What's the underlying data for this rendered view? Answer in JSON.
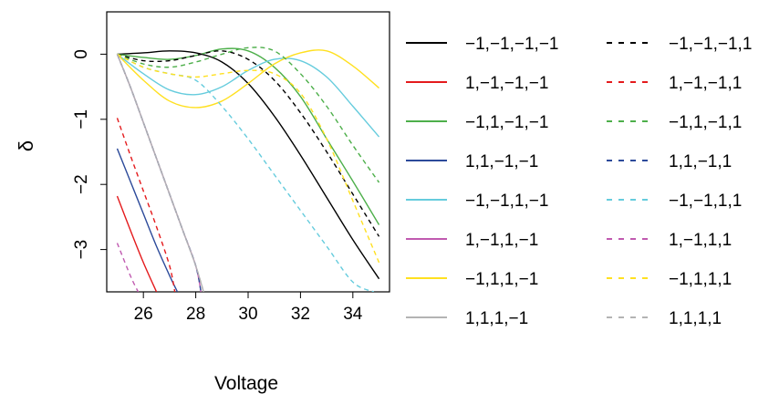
{
  "chart_data": {
    "type": "line",
    "title": "",
    "xlabel": "Voltage",
    "ylabel": "δ",
    "xlim": [
      24.6,
      35.4
    ],
    "ylim": [
      -3.65,
      0.65
    ],
    "x_ticks": [
      26,
      28,
      30,
      32,
      34
    ],
    "x_tick_labels": [
      "26",
      "28",
      "30",
      "32",
      "34"
    ],
    "y_ticks": [
      0,
      -1,
      -2,
      -3
    ],
    "y_tick_labels": [
      "0",
      "−1",
      "−2",
      "−3"
    ],
    "grid": false,
    "legend_position": "right",
    "series": [
      {
        "name": "−1,−1,−1,−1",
        "color": "#000000",
        "dash": "solid",
        "x": [
          25,
          26,
          27,
          28,
          29,
          30,
          31,
          32,
          33,
          34,
          35
        ],
        "y": [
          0,
          0.02,
          0.05,
          0.02,
          -0.12,
          -0.45,
          -0.95,
          -1.55,
          -2.2,
          -2.85,
          -3.45
        ]
      },
      {
        "name": "1,−1,−1,−1",
        "color": "#e41a1c",
        "dash": "solid",
        "x": [
          25,
          25.5,
          26,
          26.5
        ],
        "y": [
          -2.18,
          -2.7,
          -3.2,
          -3.65
        ]
      },
      {
        "name": "−1,1,−1,−1",
        "color": "#4daf4a",
        "dash": "solid",
        "x": [
          25,
          26,
          27,
          28,
          29,
          30,
          31,
          32,
          33,
          34,
          35
        ],
        "y": [
          0,
          -0.05,
          -0.08,
          -0.02,
          0.08,
          0.05,
          -0.2,
          -0.65,
          -1.3,
          -1.95,
          -2.62
        ]
      },
      {
        "name": "1,1,−1,−1",
        "color": "#2c4a9a",
        "dash": "solid",
        "x": [
          25,
          25.5,
          26,
          26.5,
          27,
          27.3
        ],
        "y": [
          -1.45,
          -1.95,
          -2.45,
          -2.95,
          -3.4,
          -3.65
        ]
      },
      {
        "name": "−1,−1,1,−1",
        "color": "#66ccdd",
        "dash": "solid",
        "x": [
          25,
          26,
          27,
          28,
          29,
          30,
          31,
          32,
          33,
          34,
          35
        ],
        "y": [
          0,
          -0.3,
          -0.55,
          -0.62,
          -0.5,
          -0.25,
          -0.08,
          -0.1,
          -0.35,
          -0.8,
          -1.27
        ]
      },
      {
        "name": "1,−1,1,−1",
        "color": "#c05ab0",
        "dash": "solid",
        "x": [
          25,
          25.5,
          26,
          26.5,
          27,
          27.5,
          28,
          28.2
        ],
        "y": [
          0,
          -0.5,
          -1.05,
          -1.6,
          -2.15,
          -2.7,
          -3.25,
          -3.65
        ]
      },
      {
        "name": "−1,1,1,−1",
        "color": "#ffe020",
        "dash": "solid",
        "x": [
          25,
          26,
          27,
          28,
          29,
          30,
          31,
          32,
          33,
          34,
          35
        ],
        "y": [
          0,
          -0.4,
          -0.72,
          -0.82,
          -0.72,
          -0.45,
          -0.15,
          0.02,
          0.05,
          -0.18,
          -0.52
        ]
      },
      {
        "name": "1,1,1,−1",
        "color": "#b3b3b3",
        "dash": "solid",
        "x": [
          25,
          25.5,
          26,
          26.5,
          27,
          27.5,
          28,
          28.3
        ],
        "y": [
          0,
          -0.5,
          -1.05,
          -1.6,
          -2.15,
          -2.7,
          -3.25,
          -3.65
        ]
      },
      {
        "name": "−1,−1,−1,1",
        "color": "#000000",
        "dash": "dashed",
        "x": [
          25,
          26,
          27,
          28,
          29,
          30,
          31,
          32,
          33,
          34,
          35
        ],
        "y": [
          0,
          -0.1,
          -0.1,
          -0.02,
          0.05,
          -0.08,
          -0.4,
          -0.9,
          -1.5,
          -2.15,
          -2.8
        ]
      },
      {
        "name": "1,−1,−1,1",
        "color": "#e41a1c",
        "dash": "dashed",
        "x": [
          25,
          25.5,
          26,
          26.5,
          27,
          27.2
        ],
        "y": [
          -0.98,
          -1.55,
          -2.1,
          -2.65,
          -3.25,
          -3.65
        ]
      },
      {
        "name": "−1,1,−1,1",
        "color": "#4daf4a",
        "dash": "dashed",
        "x": [
          25,
          26,
          27,
          28,
          29,
          30,
          31,
          32,
          33,
          34,
          35
        ],
        "y": [
          0,
          -0.15,
          -0.2,
          -0.12,
          0.0,
          0.1,
          0.05,
          -0.3,
          -0.8,
          -1.4,
          -1.97
        ]
      },
      {
        "name": "1,1,−1,1",
        "color": "#2c4a9a",
        "dash": "dashed",
        "x": [
          25,
          25.5,
          26,
          26.5,
          27,
          27.5,
          28,
          28.2
        ],
        "y": [
          0,
          -0.5,
          -1.05,
          -1.6,
          -2.15,
          -2.7,
          -3.25,
          -3.65
        ]
      },
      {
        "name": "−1,−1,1,1",
        "color": "#66ccdd",
        "dash": "dashed",
        "x": [
          25,
          26,
          27,
          28,
          29,
          30,
          31,
          32,
          33,
          34,
          34.8
        ],
        "y": [
          0,
          -0.2,
          -0.3,
          -0.4,
          -0.8,
          -1.3,
          -1.85,
          -2.4,
          -2.95,
          -3.5,
          -3.65
        ]
      },
      {
        "name": "1,−1,1,1",
        "color": "#c05ab0",
        "dash": "dashed",
        "x": [
          25,
          25.5,
          25.8
        ],
        "y": [
          -2.9,
          -3.4,
          -3.65
        ]
      },
      {
        "name": "−1,1,1,1",
        "color": "#ffe020",
        "dash": "dashed",
        "x": [
          25,
          26,
          27,
          28,
          29,
          30,
          31,
          32,
          33,
          34,
          35
        ],
        "y": [
          0,
          -0.2,
          -0.3,
          -0.35,
          -0.3,
          -0.25,
          -0.3,
          -0.6,
          -1.3,
          -2.25,
          -3.2
        ]
      },
      {
        "name": "1,1,1,1",
        "color": "#b3b3b3",
        "dash": "dashed",
        "x": [
          25,
          25.5,
          26,
          26.5,
          27,
          27.5,
          28,
          28.3
        ],
        "y": [
          0,
          -0.5,
          -1.05,
          -1.6,
          -2.15,
          -2.7,
          -3.25,
          -3.65
        ]
      }
    ]
  }
}
